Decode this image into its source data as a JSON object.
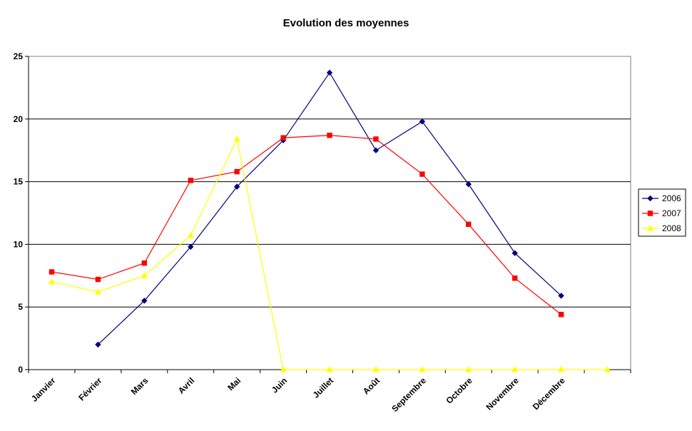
{
  "chart_data": {
    "type": "line",
    "title": "Evolution des moyennes",
    "xlabel": "",
    "ylabel": "",
    "categories": [
      "Janvier",
      "Février",
      "Mars",
      "Avril",
      "Mai",
      "Juin",
      "Juillet",
      "Août",
      "Septembre",
      "Octobre",
      "Novembre",
      "Décembre",
      ""
    ],
    "ylim": [
      0,
      25
    ],
    "yticks": [
      0,
      5,
      10,
      15,
      20,
      25
    ],
    "grid": true,
    "legend": "right",
    "series": [
      {
        "name": "2006",
        "color": "#000080",
        "marker": "diamond",
        "values": [
          null,
          2.0,
          5.5,
          9.8,
          14.6,
          18.3,
          23.7,
          17.5,
          19.8,
          14.8,
          9.3,
          5.9,
          null
        ]
      },
      {
        "name": "2007",
        "color": "#ff0000",
        "marker": "square",
        "values": [
          7.8,
          7.2,
          8.5,
          15.1,
          15.8,
          18.5,
          18.7,
          18.4,
          15.6,
          11.6,
          7.3,
          4.4,
          null
        ]
      },
      {
        "name": "2008",
        "color": "#ffff00",
        "marker": "triangle",
        "values": [
          7.0,
          6.2,
          7.5,
          10.7,
          18.4,
          0,
          0,
          0,
          0,
          0,
          0,
          0,
          0
        ]
      }
    ]
  }
}
